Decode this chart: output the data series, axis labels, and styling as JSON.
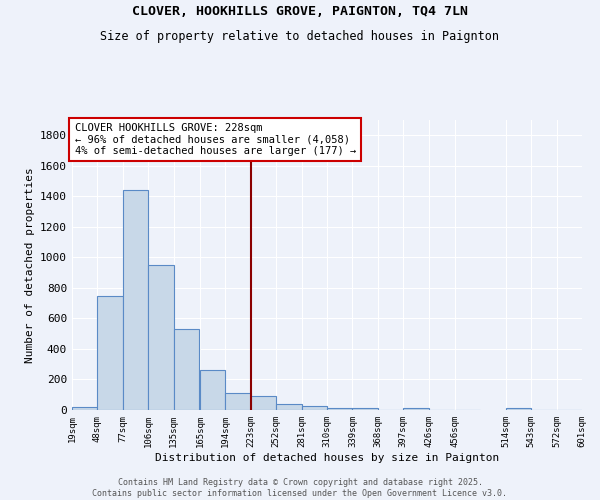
{
  "title": "CLOVER, HOOKHILLS GROVE, PAIGNTON, TQ4 7LN",
  "subtitle": "Size of property relative to detached houses in Paignton",
  "xlabel": "Distribution of detached houses by size in Paignton",
  "ylabel": "Number of detached properties",
  "bar_values": [
    20,
    750,
    1440,
    950,
    530,
    265,
    110,
    90,
    40,
    25,
    15,
    15,
    0,
    15,
    0,
    0,
    10,
    0,
    0
  ],
  "bin_edges": [
    19,
    48,
    77,
    106,
    135,
    165,
    194,
    223,
    252,
    281,
    310,
    339,
    368,
    397,
    426,
    456,
    514,
    543,
    572,
    601
  ],
  "tick_labels": [
    "19sqm",
    "48sqm",
    "77sqm",
    "106sqm",
    "135sqm",
    "165sqm",
    "194sqm",
    "223sqm",
    "252sqm",
    "281sqm",
    "310sqm",
    "339sqm",
    "368sqm",
    "397sqm",
    "426sqm",
    "456sqm",
    "514sqm",
    "543sqm",
    "572sqm",
    "601sqm"
  ],
  "bar_color": "#c8d8e8",
  "bar_edge_color": "#5a8ac6",
  "property_line_x": 223,
  "annotation_title": "CLOVER HOOKHILLS GROVE: 228sqm",
  "annotation_line1": "← 96% of detached houses are smaller (4,058)",
  "annotation_line2": "4% of semi-detached houses are larger (177) →",
  "annotation_box_color": "#ffffff",
  "annotation_box_edge": "#cc0000",
  "line_color": "#8b0000",
  "ylim": [
    0,
    1900
  ],
  "yticks": [
    0,
    200,
    400,
    600,
    800,
    1000,
    1200,
    1400,
    1600,
    1800
  ],
  "background_color": "#eef2fa",
  "grid_color": "#ffffff",
  "footer_line1": "Contains HM Land Registry data © Crown copyright and database right 2025.",
  "footer_line2": "Contains public sector information licensed under the Open Government Licence v3.0."
}
